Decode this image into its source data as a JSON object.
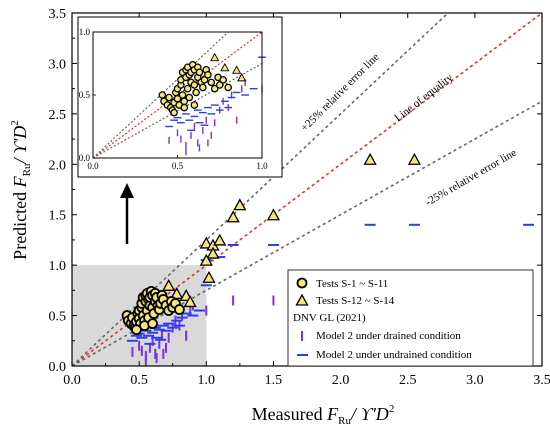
{
  "chart_data": {
    "type": "scatter",
    "title": "",
    "xlabel": {
      "prefix": "Measured ",
      "var": "F",
      "sub": "Ru",
      "suffix": "/ ϒ'D",
      "sup": "2"
    },
    "ylabel": {
      "prefix": "Predicted ",
      "var": "F",
      "sub": "Ru",
      "suffix": "/ ϒ'D",
      "sup": "2"
    },
    "xlim": [
      0.0,
      3.5
    ],
    "ylim": [
      0.0,
      3.5
    ],
    "xticks": [
      "0.0",
      "0.5",
      "1.0",
      "1.5",
      "2.0",
      "2.5",
      "3.0",
      "3.5"
    ],
    "yticks": [
      "0.0",
      "0.5",
      "1.0",
      "1.5",
      "2.0",
      "2.5",
      "3.0",
      "3.5"
    ],
    "grid": false,
    "legend_position": "bottom-right",
    "lines": [
      {
        "name": "Line of equality",
        "slope": 1.0,
        "color": "#e8302a"
      },
      {
        "name": "+25% relative error line",
        "slope": 1.25,
        "color": "#666666"
      },
      {
        "name": "-25% relative error line",
        "slope": 0.75,
        "color": "#666666"
      }
    ],
    "annotations": {
      "equality": "Line of equality",
      "plus25": "+25% relative error line",
      "minus25": "-25% relative error line"
    },
    "legend": {
      "circles": "Tests S-1 ~ S-11",
      "triangles": "Tests S-12 ~ S-14",
      "group_title": "DNV GL (2021)",
      "drained": "Model 2 under drained condition",
      "undrained": "Model 2 under undrained condition"
    },
    "inset": {
      "xlim": [
        0.0,
        1.0
      ],
      "ylim": [
        0.0,
        1.0
      ],
      "xticks": [
        "0.0",
        "0.5",
        "1.0"
      ],
      "yticks": [
        "0.0",
        "0.5",
        "1.0"
      ]
    },
    "series": [
      {
        "name": "Tests S-1 ~ S-11",
        "marker": "circle",
        "color": "#f4e678",
        "points": [
          [
            0.41,
            0.5
          ],
          [
            0.42,
            0.45
          ],
          [
            0.44,
            0.42
          ],
          [
            0.45,
            0.48
          ],
          [
            0.46,
            0.4
          ],
          [
            0.47,
            0.38
          ],
          [
            0.48,
            0.44
          ],
          [
            0.49,
            0.52
          ],
          [
            0.5,
            0.55
          ],
          [
            0.5,
            0.47
          ],
          [
            0.51,
            0.42
          ],
          [
            0.52,
            0.58
          ],
          [
            0.52,
            0.62
          ],
          [
            0.53,
            0.68
          ],
          [
            0.53,
            0.5
          ],
          [
            0.54,
            0.45
          ],
          [
            0.55,
            0.64
          ],
          [
            0.55,
            0.7
          ],
          [
            0.56,
            0.72
          ],
          [
            0.56,
            0.55
          ],
          [
            0.57,
            0.66
          ],
          [
            0.57,
            0.48
          ],
          [
            0.58,
            0.6
          ],
          [
            0.58,
            0.68
          ],
          [
            0.59,
            0.74
          ],
          [
            0.6,
            0.7
          ],
          [
            0.6,
            0.58
          ],
          [
            0.61,
            0.52
          ],
          [
            0.62,
            0.64
          ],
          [
            0.62,
            0.72
          ],
          [
            0.63,
            0.68
          ],
          [
            0.64,
            0.6
          ],
          [
            0.65,
            0.56
          ],
          [
            0.66,
            0.62
          ],
          [
            0.67,
            0.7
          ],
          [
            0.68,
            0.66
          ],
          [
            0.7,
            0.6
          ],
          [
            0.72,
            0.55
          ],
          [
            0.74,
            0.64
          ],
          [
            0.75,
            0.58
          ],
          [
            0.77,
            0.62
          ],
          [
            0.8,
            0.56
          ],
          [
            0.48,
            0.36
          ],
          [
            0.54,
            0.4
          ],
          [
            0.6,
            0.42
          ]
        ]
      },
      {
        "name": "Tests S-12 ~ S-14",
        "marker": "triangle",
        "color": "#f4e678",
        "points": [
          [
            0.72,
            0.8
          ],
          [
            0.78,
            0.72
          ],
          [
            0.85,
            0.7
          ],
          [
            0.88,
            0.64
          ],
          [
            1.0,
            1.22
          ],
          [
            1.05,
            1.2
          ],
          [
            1.1,
            1.25
          ],
          [
            1.05,
            1.12
          ],
          [
            1.0,
            1.05
          ],
          [
            1.02,
            0.88
          ],
          [
            1.2,
            1.48
          ],
          [
            1.25,
            1.6
          ],
          [
            1.5,
            1.5
          ],
          [
            2.22,
            2.05
          ],
          [
            2.55,
            2.05
          ]
        ]
      },
      {
        "name": "Model 2 under drained condition",
        "marker": "vbar",
        "color": "#7a30e8",
        "points": [
          [
            0.5,
            0.2
          ],
          [
            0.52,
            0.15
          ],
          [
            0.55,
            0.1
          ],
          [
            0.58,
            0.18
          ],
          [
            0.6,
            0.25
          ],
          [
            0.62,
            0.12
          ],
          [
            0.65,
            0.22
          ],
          [
            0.67,
            0.3
          ],
          [
            0.7,
            0.18
          ],
          [
            0.72,
            0.28
          ],
          [
            0.75,
            0.38
          ],
          [
            0.77,
            0.45
          ],
          [
            0.8,
            0.4
          ],
          [
            0.82,
            0.5
          ],
          [
            0.85,
            0.3
          ],
          [
            0.88,
            0.55
          ],
          [
            0.9,
            0.6
          ],
          [
            1.0,
            0.55
          ],
          [
            1.2,
            0.65
          ],
          [
            1.5,
            0.65
          ],
          [
            0.55,
            0.05
          ],
          [
            0.63,
            0.08
          ],
          [
            0.45,
            0.14
          ],
          [
            0.68,
            0.12
          ]
        ]
      },
      {
        "name": "Model 2 under undrained condition",
        "marker": "hbar",
        "color": "#2a3ef0",
        "points": [
          [
            0.45,
            0.25
          ],
          [
            0.48,
            0.3
          ],
          [
            0.5,
            0.32
          ],
          [
            0.52,
            0.28
          ],
          [
            0.55,
            0.35
          ],
          [
            0.57,
            0.3
          ],
          [
            0.6,
            0.33
          ],
          [
            0.62,
            0.38
          ],
          [
            0.63,
            0.28
          ],
          [
            0.65,
            0.36
          ],
          [
            0.68,
            0.4
          ],
          [
            0.7,
            0.35
          ],
          [
            0.72,
            0.42
          ],
          [
            0.75,
            0.38
          ],
          [
            0.78,
            0.45
          ],
          [
            0.8,
            0.4
          ],
          [
            0.82,
            0.48
          ],
          [
            0.85,
            0.52
          ],
          [
            0.9,
            0.5
          ],
          [
            0.95,
            0.55
          ],
          [
            1.0,
            0.8
          ],
          [
            1.0,
            1.05
          ],
          [
            1.1,
            1.08
          ],
          [
            1.2,
            1.2
          ],
          [
            1.5,
            1.2
          ],
          [
            2.22,
            1.4
          ],
          [
            2.55,
            1.4
          ],
          [
            3.4,
            1.4
          ],
          [
            0.58,
            0.22
          ],
          [
            0.66,
            0.26
          ]
        ]
      }
    ]
  }
}
